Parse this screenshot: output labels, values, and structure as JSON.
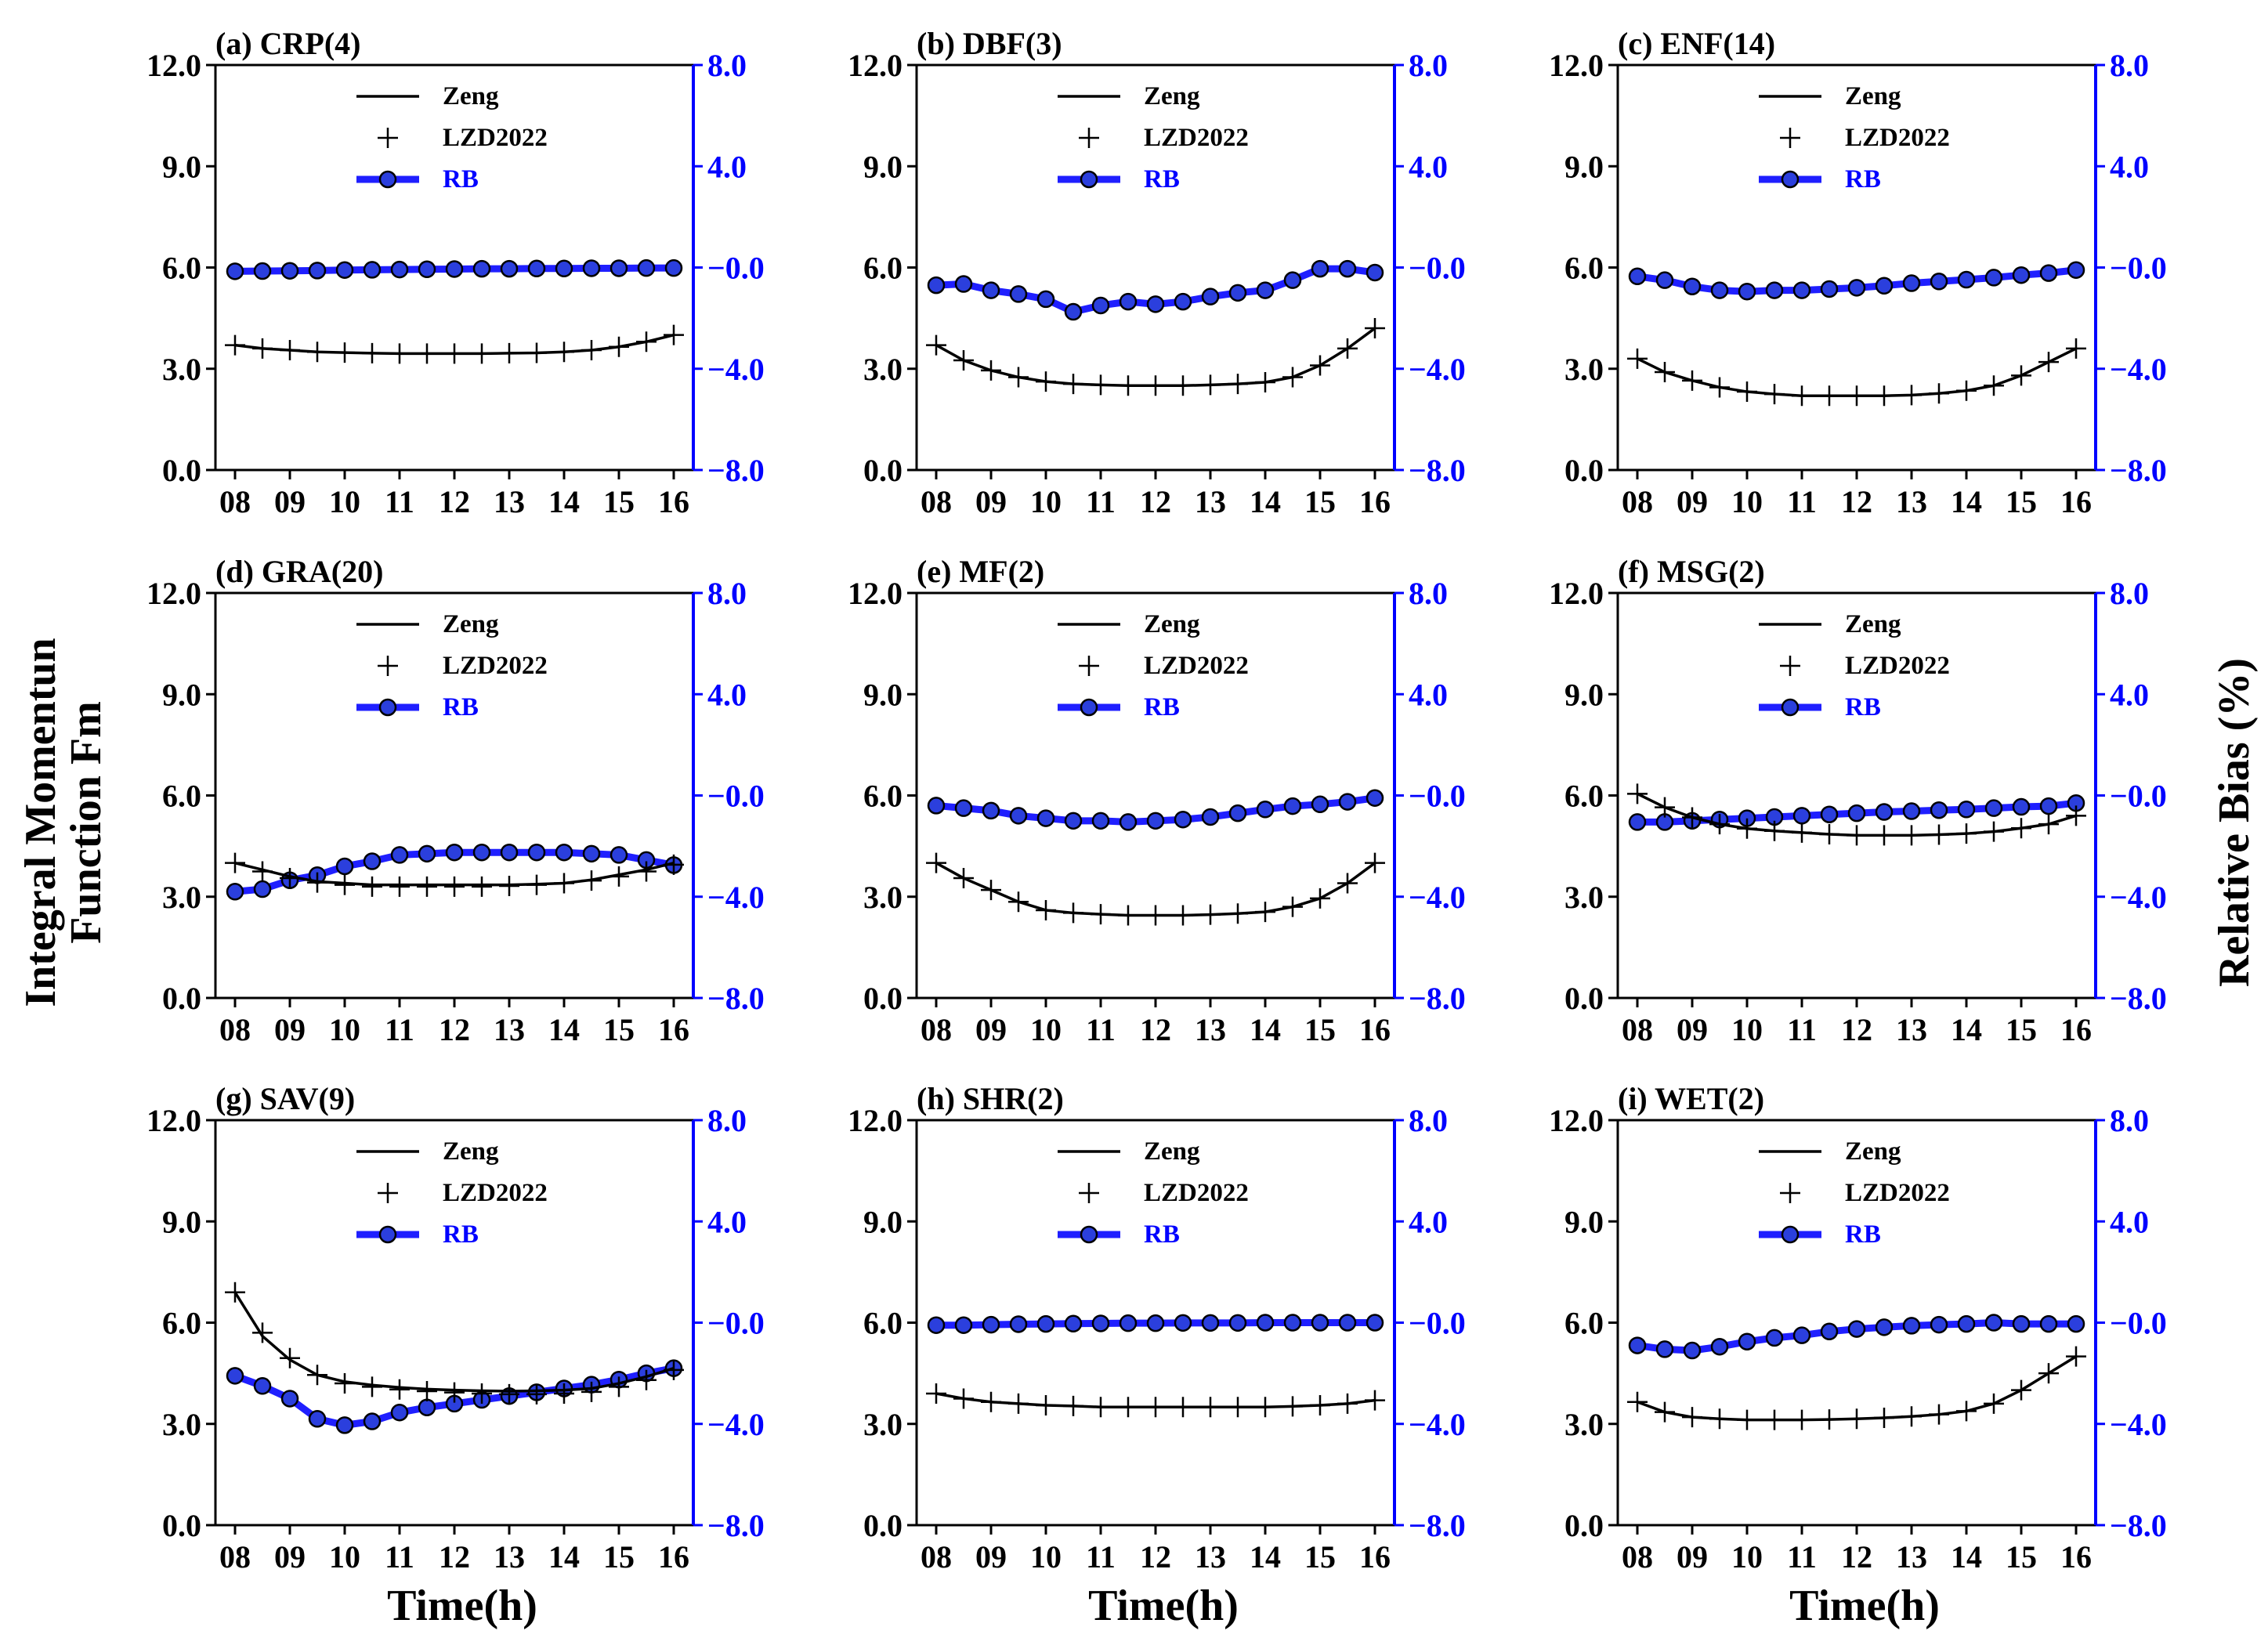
{
  "figure": {
    "y_left_label_line1": "Integral Momentun",
    "y_left_label_line2": "Function Fm",
    "y_right_label": "Relative Bias (%)",
    "x_label": "Time(h)"
  },
  "colors": {
    "zeng": "#000000",
    "lzd": "#000000",
    "rb_line": "#1f1fff",
    "rb_marker": "#2b3fdd",
    "right_axis": "#0000ff"
  },
  "chart_data": [
    {
      "type": "line",
      "title": "(a) CRP(4)",
      "x": [
        8,
        8.5,
        9,
        9.5,
        10,
        10.5,
        11,
        11.5,
        12,
        12.5,
        13,
        13.5,
        14,
        14.5,
        15,
        15.5,
        16
      ],
      "xticks": [
        "08",
        "09",
        "10",
        "11",
        "12",
        "13",
        "14",
        "15",
        "16"
      ],
      "ylim_left": [
        0,
        12
      ],
      "yticks_left": [
        "0.0",
        "3.0",
        "6.0",
        "9.0",
        "12.0"
      ],
      "ylim_right": [
        -8,
        8
      ],
      "yticks_right": [
        "−8.0",
        "−4.0",
        "−0.0",
        "4.0",
        "8.0"
      ],
      "legend": [
        "Zeng",
        "LZD2022",
        "RB"
      ],
      "series": [
        {
          "name": "Zeng",
          "axis": "left",
          "values": [
            3.7,
            3.6,
            3.55,
            3.5,
            3.48,
            3.46,
            3.45,
            3.45,
            3.45,
            3.45,
            3.46,
            3.47,
            3.5,
            3.55,
            3.65,
            3.8,
            4.0
          ]
        },
        {
          "name": "LZD2022",
          "axis": "left",
          "values": [
            3.7,
            3.6,
            3.55,
            3.5,
            3.48,
            3.46,
            3.45,
            3.45,
            3.45,
            3.45,
            3.46,
            3.47,
            3.5,
            3.55,
            3.65,
            3.8,
            4.0
          ]
        },
        {
          "name": "RB",
          "axis": "right",
          "values": [
            -0.15,
            -0.14,
            -0.13,
            -0.12,
            -0.1,
            -0.09,
            -0.08,
            -0.07,
            -0.06,
            -0.05,
            -0.05,
            -0.04,
            -0.04,
            -0.03,
            -0.03,
            -0.02,
            -0.02
          ]
        }
      ]
    },
    {
      "type": "line",
      "title": "(b) DBF(3)",
      "x": [
        8,
        8.5,
        9,
        9.5,
        10,
        10.5,
        11,
        11.5,
        12,
        12.5,
        13,
        13.5,
        14,
        14.5,
        15,
        15.5,
        16
      ],
      "xticks": [
        "08",
        "09",
        "10",
        "11",
        "12",
        "13",
        "14",
        "15",
        "16"
      ],
      "ylim_left": [
        0,
        12
      ],
      "yticks_left": [
        "0.0",
        "3.0",
        "6.0",
        "9.0",
        "12.0"
      ],
      "ylim_right": [
        -8,
        8
      ],
      "yticks_right": [
        "−8.0",
        "−4.0",
        "−0.0",
        "4.0",
        "8.0"
      ],
      "legend": [
        "Zeng",
        "LZD2022",
        "RB"
      ],
      "series": [
        {
          "name": "Zeng",
          "axis": "left",
          "values": [
            3.7,
            3.25,
            2.95,
            2.75,
            2.62,
            2.55,
            2.52,
            2.5,
            2.5,
            2.5,
            2.52,
            2.55,
            2.6,
            2.75,
            3.1,
            3.6,
            4.2
          ]
        },
        {
          "name": "LZD2022",
          "axis": "left",
          "values": [
            3.7,
            3.25,
            2.95,
            2.75,
            2.62,
            2.55,
            2.52,
            2.5,
            2.5,
            2.5,
            2.52,
            2.55,
            2.6,
            2.75,
            3.1,
            3.6,
            4.2
          ]
        },
        {
          "name": "RB",
          "axis": "right",
          "values": [
            -0.7,
            -0.65,
            -0.9,
            -1.05,
            -1.25,
            -1.75,
            -1.5,
            -1.35,
            -1.45,
            -1.35,
            -1.15,
            -1.0,
            -0.9,
            -0.5,
            -0.05,
            -0.05,
            -0.2
          ]
        }
      ]
    },
    {
      "type": "line",
      "title": "(c) ENF(14)",
      "x": [
        8,
        8.5,
        9,
        9.5,
        10,
        10.5,
        11,
        11.5,
        12,
        12.5,
        13,
        13.5,
        14,
        14.5,
        15,
        15.5,
        16
      ],
      "xticks": [
        "08",
        "09",
        "10",
        "11",
        "12",
        "13",
        "14",
        "15",
        "16"
      ],
      "ylim_left": [
        0,
        12
      ],
      "yticks_left": [
        "0.0",
        "3.0",
        "6.0",
        "9.0",
        "12.0"
      ],
      "ylim_right": [
        -8,
        8
      ],
      "yticks_right": [
        "−8.0",
        "−4.0",
        "−0.0",
        "4.0",
        "8.0"
      ],
      "legend": [
        "Zeng",
        "LZD2022",
        "RB"
      ],
      "series": [
        {
          "name": "Zeng",
          "axis": "left",
          "values": [
            3.3,
            2.9,
            2.65,
            2.45,
            2.32,
            2.25,
            2.2,
            2.2,
            2.2,
            2.2,
            2.22,
            2.27,
            2.35,
            2.5,
            2.8,
            3.2,
            3.6
          ]
        },
        {
          "name": "LZD2022",
          "axis": "left",
          "values": [
            3.3,
            2.9,
            2.65,
            2.45,
            2.32,
            2.25,
            2.2,
            2.2,
            2.2,
            2.2,
            2.22,
            2.27,
            2.35,
            2.5,
            2.8,
            3.2,
            3.6
          ]
        },
        {
          "name": "RB",
          "axis": "right",
          "values": [
            -0.35,
            -0.5,
            -0.75,
            -0.9,
            -0.95,
            -0.9,
            -0.9,
            -0.85,
            -0.8,
            -0.72,
            -0.62,
            -0.55,
            -0.48,
            -0.4,
            -0.3,
            -0.22,
            -0.1
          ]
        }
      ]
    },
    {
      "type": "line",
      "title": "(d) GRA(20)",
      "x": [
        8,
        8.5,
        9,
        9.5,
        10,
        10.5,
        11,
        11.5,
        12,
        12.5,
        13,
        13.5,
        14,
        14.5,
        15,
        15.5,
        16
      ],
      "xticks": [
        "08",
        "09",
        "10",
        "11",
        "12",
        "13",
        "14",
        "15",
        "16"
      ],
      "ylim_left": [
        0,
        12
      ],
      "yticks_left": [
        "0.0",
        "3.0",
        "6.0",
        "9.0",
        "12.0"
      ],
      "ylim_right": [
        -8,
        8
      ],
      "yticks_right": [
        "−8.0",
        "−4.0",
        "−0.0",
        "4.0",
        "8.0"
      ],
      "legend": [
        "Zeng",
        "LZD2022",
        "RB"
      ],
      "series": [
        {
          "name": "Zeng",
          "axis": "left",
          "values": [
            4.0,
            3.8,
            3.6,
            3.45,
            3.4,
            3.35,
            3.35,
            3.35,
            3.35,
            3.35,
            3.35,
            3.37,
            3.4,
            3.5,
            3.65,
            3.8,
            4.0
          ]
        },
        {
          "name": "LZD2022",
          "axis": "left",
          "values": [
            4.0,
            3.75,
            3.55,
            3.42,
            3.35,
            3.3,
            3.3,
            3.3,
            3.3,
            3.3,
            3.32,
            3.35,
            3.4,
            3.48,
            3.6,
            3.75,
            3.95
          ]
        },
        {
          "name": "RB",
          "axis": "right",
          "values": [
            -3.8,
            -3.7,
            -3.35,
            -3.15,
            -2.8,
            -2.6,
            -2.35,
            -2.3,
            -2.25,
            -2.25,
            -2.25,
            -2.25,
            -2.25,
            -2.3,
            -2.35,
            -2.55,
            -2.75
          ]
        }
      ]
    },
    {
      "type": "line",
      "title": "(e) MF(2)",
      "x": [
        8,
        8.5,
        9,
        9.5,
        10,
        10.5,
        11,
        11.5,
        12,
        12.5,
        13,
        13.5,
        14,
        14.5,
        15,
        15.5,
        16
      ],
      "xticks": [
        "08",
        "09",
        "10",
        "11",
        "12",
        "13",
        "14",
        "15",
        "16"
      ],
      "ylim_left": [
        0,
        12
      ],
      "yticks_left": [
        "0.0",
        "3.0",
        "6.0",
        "9.0",
        "12.0"
      ],
      "ylim_right": [
        -8,
        8
      ],
      "yticks_right": [
        "−8.0",
        "−4.0",
        "−0.0",
        "4.0",
        "8.0"
      ],
      "legend": [
        "Zeng",
        "LZD2022",
        "RB"
      ],
      "series": [
        {
          "name": "Zeng",
          "axis": "left",
          "values": [
            4.0,
            3.55,
            3.2,
            2.85,
            2.6,
            2.52,
            2.48,
            2.45,
            2.45,
            2.45,
            2.47,
            2.5,
            2.55,
            2.7,
            2.95,
            3.4,
            4.0
          ]
        },
        {
          "name": "LZD2022",
          "axis": "left",
          "values": [
            4.0,
            3.55,
            3.2,
            2.85,
            2.6,
            2.52,
            2.48,
            2.45,
            2.45,
            2.45,
            2.47,
            2.5,
            2.55,
            2.7,
            2.95,
            3.4,
            4.0
          ]
        },
        {
          "name": "RB",
          "axis": "right",
          "values": [
            -0.4,
            -0.5,
            -0.6,
            -0.8,
            -0.9,
            -1.0,
            -1.0,
            -1.05,
            -1.0,
            -0.95,
            -0.85,
            -0.7,
            -0.55,
            -0.42,
            -0.35,
            -0.25,
            -0.1
          ]
        }
      ]
    },
    {
      "type": "line",
      "title": "(f) MSG(2)",
      "x": [
        8,
        8.5,
        9,
        9.5,
        10,
        10.5,
        11,
        11.5,
        12,
        12.5,
        13,
        13.5,
        14,
        14.5,
        15,
        15.5,
        16
      ],
      "xticks": [
        "08",
        "09",
        "10",
        "11",
        "12",
        "13",
        "14",
        "15",
        "16"
      ],
      "ylim_left": [
        0,
        12
      ],
      "yticks_left": [
        "0.0",
        "3.0",
        "6.0",
        "9.0",
        "12.0"
      ],
      "ylim_right": [
        -8,
        8
      ],
      "yticks_right": [
        "−8.0",
        "−4.0",
        "−0.0",
        "4.0",
        "8.0"
      ],
      "legend": [
        "Zeng",
        "LZD2022",
        "RB"
      ],
      "series": [
        {
          "name": "Zeng",
          "axis": "left",
          "values": [
            6.05,
            5.65,
            5.35,
            5.15,
            5.02,
            4.95,
            4.9,
            4.85,
            4.82,
            4.82,
            4.82,
            4.84,
            4.87,
            4.93,
            5.03,
            5.15,
            5.4
          ]
        },
        {
          "name": "LZD2022",
          "axis": "left",
          "values": [
            6.05,
            5.65,
            5.35,
            5.15,
            5.02,
            4.95,
            4.9,
            4.85,
            4.82,
            4.82,
            4.82,
            4.84,
            4.87,
            4.93,
            5.03,
            5.15,
            5.4
          ]
        },
        {
          "name": "RB",
          "axis": "right",
          "values": [
            -1.05,
            -1.05,
            -1.0,
            -0.95,
            -0.9,
            -0.85,
            -0.8,
            -0.75,
            -0.7,
            -0.65,
            -0.62,
            -0.58,
            -0.55,
            -0.5,
            -0.45,
            -0.42,
            -0.3
          ]
        }
      ]
    },
    {
      "type": "line",
      "title": "(g) SAV(9)",
      "x": [
        8,
        8.5,
        9,
        9.5,
        10,
        10.5,
        11,
        11.5,
        12,
        12.5,
        13,
        13.5,
        14,
        14.5,
        15,
        15.5,
        16
      ],
      "xticks": [
        "08",
        "09",
        "10",
        "11",
        "12",
        "13",
        "14",
        "15",
        "16"
      ],
      "ylim_left": [
        0,
        12
      ],
      "yticks_left": [
        "0.0",
        "3.0",
        "6.0",
        "9.0",
        "12.0"
      ],
      "ylim_right": [
        -8,
        8
      ],
      "yticks_right": [
        "−8.0",
        "−4.0",
        "−0.0",
        "4.0",
        "8.0"
      ],
      "legend": [
        "Zeng",
        "LZD2022",
        "RB"
      ],
      "series": [
        {
          "name": "Zeng",
          "axis": "left",
          "values": [
            6.9,
            5.6,
            4.9,
            4.45,
            4.25,
            4.15,
            4.08,
            4.03,
            4.0,
            3.98,
            3.97,
            3.98,
            4.0,
            4.05,
            4.2,
            4.4,
            4.65
          ]
        },
        {
          "name": "LZD2022",
          "axis": "left",
          "values": [
            6.9,
            5.7,
            4.95,
            4.45,
            4.2,
            4.1,
            4.02,
            3.97,
            3.93,
            3.9,
            3.88,
            3.88,
            3.9,
            3.95,
            4.1,
            4.3,
            4.6
          ]
        },
        {
          "name": "RB",
          "axis": "right",
          "values": [
            -2.1,
            -2.5,
            -3.0,
            -3.8,
            -4.05,
            -3.9,
            -3.55,
            -3.35,
            -3.2,
            -3.05,
            -2.9,
            -2.75,
            -2.6,
            -2.45,
            -2.25,
            -2.0,
            -1.8
          ]
        }
      ]
    },
    {
      "type": "line",
      "title": "(h) SHR(2)",
      "x": [
        8,
        8.5,
        9,
        9.5,
        10,
        10.5,
        11,
        11.5,
        12,
        12.5,
        13,
        13.5,
        14,
        14.5,
        15,
        15.5,
        16
      ],
      "xticks": [
        "08",
        "09",
        "10",
        "11",
        "12",
        "13",
        "14",
        "15",
        "16"
      ],
      "ylim_left": [
        0,
        12
      ],
      "yticks_left": [
        "0.0",
        "3.0",
        "6.0",
        "9.0",
        "12.0"
      ],
      "ylim_right": [
        -8,
        8
      ],
      "yticks_right": [
        "−8.0",
        "−4.0",
        "−0.0",
        "4.0",
        "8.0"
      ],
      "legend": [
        "Zeng",
        "LZD2022",
        "RB"
      ],
      "series": [
        {
          "name": "Zeng",
          "axis": "left",
          "values": [
            3.9,
            3.75,
            3.65,
            3.6,
            3.55,
            3.53,
            3.5,
            3.5,
            3.5,
            3.5,
            3.5,
            3.5,
            3.5,
            3.52,
            3.55,
            3.6,
            3.7
          ]
        },
        {
          "name": "LZD2022",
          "axis": "left",
          "values": [
            3.9,
            3.75,
            3.65,
            3.6,
            3.55,
            3.53,
            3.5,
            3.5,
            3.5,
            3.5,
            3.5,
            3.5,
            3.5,
            3.52,
            3.55,
            3.6,
            3.7
          ]
        },
        {
          "name": "RB",
          "axis": "right",
          "values": [
            -0.1,
            -0.1,
            -0.08,
            -0.06,
            -0.05,
            -0.04,
            -0.03,
            -0.02,
            -0.02,
            -0.01,
            -0.01,
            -0.01,
            0.0,
            0.0,
            0.0,
            0.0,
            0.0
          ]
        }
      ]
    },
    {
      "type": "line",
      "title": "(i) WET(2)",
      "x": [
        8,
        8.5,
        9,
        9.5,
        10,
        10.5,
        11,
        11.5,
        12,
        12.5,
        13,
        13.5,
        14,
        14.5,
        15,
        15.5,
        16
      ],
      "xticks": [
        "08",
        "09",
        "10",
        "11",
        "12",
        "13",
        "14",
        "15",
        "16"
      ],
      "ylim_left": [
        0,
        12
      ],
      "yticks_left": [
        "0.0",
        "3.0",
        "6.0",
        "9.0",
        "12.0"
      ],
      "ylim_right": [
        -8,
        8
      ],
      "yticks_right": [
        "−8.0",
        "−4.0",
        "−0.0",
        "4.0",
        "8.0"
      ],
      "legend": [
        "Zeng",
        "LZD2022",
        "RB"
      ],
      "series": [
        {
          "name": "Zeng",
          "axis": "left",
          "values": [
            3.65,
            3.35,
            3.2,
            3.15,
            3.12,
            3.12,
            3.12,
            3.13,
            3.15,
            3.18,
            3.22,
            3.28,
            3.38,
            3.6,
            4.0,
            4.5,
            5.0
          ]
        },
        {
          "name": "LZD2022",
          "axis": "left",
          "values": [
            3.65,
            3.35,
            3.2,
            3.15,
            3.12,
            3.12,
            3.12,
            3.13,
            3.15,
            3.18,
            3.22,
            3.28,
            3.38,
            3.6,
            4.0,
            4.5,
            5.0
          ]
        },
        {
          "name": "RB",
          "axis": "right",
          "values": [
            -0.9,
            -1.05,
            -1.1,
            -0.95,
            -0.75,
            -0.6,
            -0.5,
            -0.35,
            -0.25,
            -0.18,
            -0.12,
            -0.08,
            -0.05,
            0.0,
            -0.05,
            -0.05,
            -0.05
          ]
        }
      ]
    }
  ]
}
